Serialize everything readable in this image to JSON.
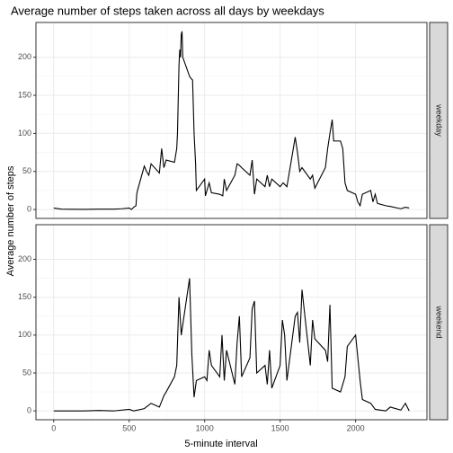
{
  "title": "Average number of steps taken across all days by weekdays",
  "x_label": "5-minute interval",
  "y_label": "Average number of steps",
  "chart_data": [
    {
      "type": "line",
      "strip": "weekday",
      "color": "#000000",
      "grid": true,
      "xlim": [
        -117.75,
        2472.75
      ],
      "ylim": [
        -11.7,
        245.7
      ],
      "xticks": [
        0,
        500,
        1000,
        1500,
        2000
      ],
      "yticks": [
        0,
        50,
        100,
        150,
        200
      ],
      "x": [
        0,
        50,
        100,
        200,
        300,
        400,
        450,
        500,
        515,
        530,
        545,
        550,
        555,
        600,
        615,
        630,
        645,
        700,
        715,
        730,
        745,
        800,
        815,
        820,
        830,
        835,
        840,
        845,
        850,
        855,
        900,
        910,
        920,
        930,
        940,
        945,
        1000,
        1005,
        1030,
        1045,
        1100,
        1120,
        1130,
        1145,
        1200,
        1215,
        1230,
        1245,
        1300,
        1315,
        1330,
        1345,
        1400,
        1415,
        1430,
        1445,
        1500,
        1520,
        1545,
        1600,
        1615,
        1630,
        1645,
        1700,
        1715,
        1730,
        1800,
        1815,
        1830,
        1845,
        1855,
        1900,
        1915,
        1930,
        1945,
        2000,
        2015,
        2030,
        2045,
        2100,
        2115,
        2130,
        2145,
        2200,
        2230,
        2300,
        2330,
        2355
      ],
      "values": [
        2,
        0.5,
        0.3,
        0.2,
        0.5,
        0.5,
        1,
        2,
        0,
        3,
        5,
        20,
        25,
        57,
        50,
        45,
        60,
        48,
        80,
        55,
        65,
        62,
        80,
        100,
        190,
        210,
        200,
        230,
        234,
        200,
        175,
        172,
        170,
        100,
        60,
        25,
        40,
        18,
        35,
        22,
        20,
        18,
        40,
        25,
        45,
        60,
        58,
        55,
        45,
        65,
        20,
        40,
        30,
        45,
        30,
        40,
        30,
        35,
        30,
        95,
        75,
        50,
        55,
        40,
        45,
        28,
        55,
        80,
        100,
        118,
        90,
        90,
        80,
        35,
        25,
        20,
        10,
        5,
        20,
        25,
        10,
        20,
        8,
        5,
        4,
        1,
        3,
        2
      ]
    },
    {
      "type": "line",
      "strip": "weekend",
      "color": "#000000",
      "grid": true,
      "xlim": [
        -117.75,
        2472.75
      ],
      "ylim": [
        -11.7,
        245.7
      ],
      "xticks": [
        0,
        500,
        1000,
        1500,
        2000
      ],
      "yticks": [
        0,
        50,
        100,
        150,
        200
      ],
      "x": [
        0,
        100,
        200,
        300,
        400,
        500,
        530,
        600,
        645,
        700,
        730,
        745,
        800,
        815,
        830,
        845,
        900,
        915,
        930,
        945,
        1000,
        1015,
        1030,
        1045,
        1100,
        1115,
        1130,
        1145,
        1200,
        1215,
        1230,
        1245,
        1300,
        1315,
        1330,
        1345,
        1400,
        1415,
        1430,
        1445,
        1500,
        1515,
        1530,
        1545,
        1600,
        1615,
        1630,
        1645,
        1700,
        1715,
        1730,
        1800,
        1815,
        1830,
        1845,
        1900,
        1930,
        1945,
        2000,
        2015,
        2030,
        2045,
        2100,
        2130,
        2200,
        2230,
        2300,
        2330,
        2355
      ],
      "values": [
        0,
        0,
        0,
        0.5,
        0,
        2,
        0,
        3,
        10,
        5,
        20,
        25,
        45,
        60,
        150,
        100,
        175,
        75,
        18,
        40,
        45,
        40,
        80,
        60,
        45,
        100,
        40,
        80,
        35,
        90,
        125,
        45,
        70,
        135,
        145,
        50,
        60,
        35,
        80,
        30,
        60,
        120,
        100,
        40,
        125,
        130,
        90,
        160,
        60,
        120,
        95,
        80,
        65,
        140,
        30,
        25,
        45,
        85,
        100,
        70,
        40,
        15,
        10,
        2,
        0,
        5,
        1,
        10,
        0
      ]
    }
  ]
}
